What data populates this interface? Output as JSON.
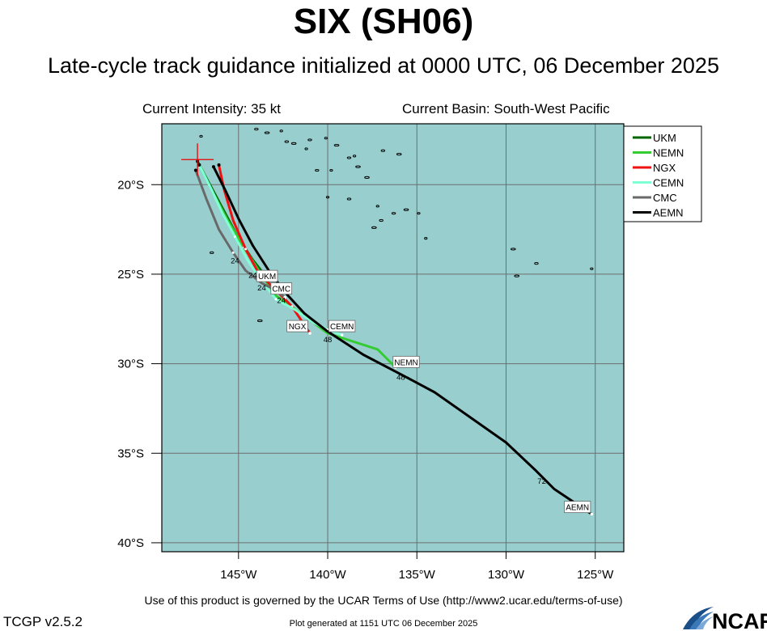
{
  "header": {
    "title": "SIX (SH06)",
    "subtitle": "Late-cycle track guidance initialized at 0000 UTC, 06 December 2025",
    "current_intensity": "Current Intensity: 35 kt",
    "current_basin": "Current Basin: South-West Pacific"
  },
  "footer": {
    "terms": "Use of this product is governed by the UCAR Terms of Use (http://www2.ucar.edu/terms-of-use)",
    "version": "TCGP v2.5.2",
    "generated": "Plot generated at 1151 UTC   06 December 2025",
    "logo_text": "NCAR"
  },
  "colors": {
    "ocean": "#98cece",
    "grid": "#6e6e6e",
    "UKM": "#006400",
    "NEMN": "#33cc33",
    "NGX": "#ee1111",
    "CEMN": "#7fffd4",
    "CMC": "#696969",
    "AEMN": "#000000"
  },
  "chart_data": {
    "type": "map",
    "lon_range": [
      -149.3,
      -123.4
    ],
    "lat_range": [
      -40.5,
      -16.6
    ],
    "x_ticks": [
      {
        "lon": -145,
        "label": "145°W"
      },
      {
        "lon": -140,
        "label": "140°W"
      },
      {
        "lon": -135,
        "label": "135°W"
      },
      {
        "lon": -130,
        "label": "130°W"
      },
      {
        "lon": -125,
        "label": "125°W"
      }
    ],
    "y_ticks": [
      {
        "lat": -20,
        "label": "20°S"
      },
      {
        "lat": -25,
        "label": "25°S"
      },
      {
        "lat": -30,
        "label": "30°S"
      },
      {
        "lat": -35,
        "label": "35°S"
      },
      {
        "lat": -40,
        "label": "40°S"
      }
    ],
    "current_position": {
      "lon": -147.3,
      "lat": -18.6
    },
    "legend": [
      "UKM",
      "NEMN",
      "NGX",
      "CEMN",
      "CMC",
      "AEMN"
    ],
    "series": [
      {
        "name": "UKM",
        "points": [
          [
            -147.3,
            -18.7
          ],
          [
            -146.6,
            -20.0
          ],
          [
            -145.8,
            -21.5
          ],
          [
            -145.0,
            -23.0
          ],
          [
            -144.2,
            -24.2
          ],
          [
            -143.5,
            -25.1
          ]
        ],
        "label": "UKM",
        "label_at": [
          -143.4,
          -25.1
        ],
        "hours": []
      },
      {
        "name": "NEMN",
        "points": [
          [
            -147.2,
            -18.9
          ],
          [
            -146.4,
            -20.5
          ],
          [
            -145.6,
            -22.0
          ],
          [
            -144.7,
            -23.5
          ],
          [
            -143.8,
            -24.9
          ],
          [
            -142.9,
            -26.2
          ],
          [
            -141.2,
            -27.4
          ],
          [
            -140.0,
            -28.3
          ],
          [
            -137.2,
            -29.2
          ],
          [
            -136.2,
            -30.2
          ]
        ],
        "label": "NEMN",
        "label_at": [
          -135.6,
          -29.9
        ],
        "hours": []
      },
      {
        "name": "NGX",
        "points": [
          [
            -146.1,
            -18.9
          ],
          [
            -145.8,
            -20.3
          ],
          [
            -145.3,
            -22.0
          ],
          [
            -144.6,
            -23.6
          ],
          [
            -143.9,
            -24.9
          ],
          [
            -142.9,
            -25.9
          ],
          [
            -142.0,
            -26.8
          ],
          [
            -141.0,
            -28.3
          ]
        ],
        "label": "NGX",
        "label_at": [
          -141.7,
          -27.9
        ],
        "hours": []
      },
      {
        "name": "CEMN",
        "points": [
          [
            -147.2,
            -18.9
          ],
          [
            -146.5,
            -20.3
          ],
          [
            -145.9,
            -21.6
          ],
          [
            -145.2,
            -22.9
          ],
          [
            -144.5,
            -24.2
          ],
          [
            -143.7,
            -25.4
          ],
          [
            -142.9,
            -26.4
          ],
          [
            -141.8,
            -27.0
          ],
          [
            -140.8,
            -27.7
          ],
          [
            -140.0,
            -28.1
          ],
          [
            -139.2,
            -28.4
          ]
        ],
        "label": "CEMN",
        "label_at": [
          -139.2,
          -27.9
        ],
        "hours": [
          {
            "text": "48",
            "at": [
              -140.0,
              -28.8
            ]
          }
        ]
      },
      {
        "name": "CMC",
        "points": [
          [
            -147.4,
            -19.2
          ],
          [
            -146.8,
            -20.8
          ],
          [
            -146.1,
            -22.5
          ],
          [
            -145.3,
            -23.8
          ],
          [
            -144.6,
            -24.8
          ],
          [
            -143.7,
            -25.5
          ],
          [
            -142.9,
            -25.9
          ],
          [
            -142.4,
            -26.3
          ]
        ],
        "label": "CMC",
        "label_at": [
          -142.6,
          -25.8
        ],
        "hours": [
          {
            "text": "24",
            "at": [
              -144.2,
              -25.2
            ]
          },
          {
            "text": "24",
            "at": [
              -143.7,
              -25.9
            ]
          }
        ]
      },
      {
        "name": "AEMN",
        "points": [
          [
            -146.4,
            -19.0
          ],
          [
            -145.7,
            -20.4
          ],
          [
            -145.0,
            -21.9
          ],
          [
            -144.2,
            -23.4
          ],
          [
            -143.3,
            -24.8
          ],
          [
            -142.4,
            -26.0
          ],
          [
            -141.3,
            -27.2
          ],
          [
            -140.0,
            -28.2
          ],
          [
            -138.0,
            -29.5
          ],
          [
            -135.5,
            -30.8
          ],
          [
            -134.0,
            -31.6
          ],
          [
            -132.0,
            -33.0
          ],
          [
            -130.0,
            -34.4
          ],
          [
            -128.3,
            -36.0
          ],
          [
            -127.3,
            -37.0
          ],
          [
            -125.2,
            -38.4
          ]
        ],
        "label": "AEMN",
        "label_at": [
          -126.0,
          -38.0
        ],
        "hours": [
          {
            "text": "24",
            "at": [
              -145.2,
              -24.4
            ]
          },
          {
            "text": "24",
            "at": [
              -142.6,
              -26.6
            ]
          },
          {
            "text": "48",
            "at": [
              -135.9,
              -30.9
            ]
          },
          {
            "text": "72",
            "at": [
              -128.0,
              -36.7
            ]
          }
        ]
      }
    ]
  }
}
